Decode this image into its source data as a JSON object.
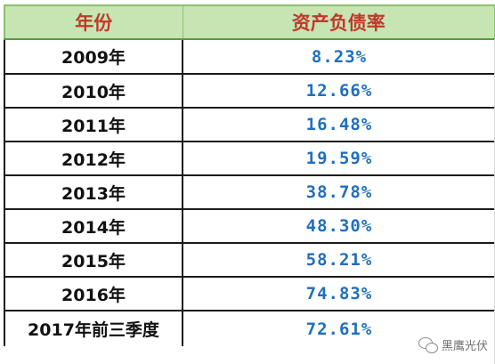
{
  "table": {
    "headers": [
      "年份",
      "资产负债率"
    ],
    "rows": [
      {
        "year": "2009年",
        "rate": "8.23%"
      },
      {
        "year": "2010年",
        "rate": "12.66%"
      },
      {
        "year": "2011年",
        "rate": "16.48%"
      },
      {
        "year": "2012年",
        "rate": "19.59%"
      },
      {
        "year": "2013年",
        "rate": "38.78%"
      },
      {
        "year": "2014年",
        "rate": "48.30%"
      },
      {
        "year": "2015年",
        "rate": "58.21%"
      },
      {
        "year": "2016年",
        "rate": "74.83%"
      },
      {
        "year": "2017年前三季度",
        "rate": "72.61%"
      }
    ]
  },
  "colors": {
    "header_bg": "#c6e5b3",
    "header_text": "#c0392b",
    "rate_text": "#1f6fbf"
  },
  "watermark": {
    "icon": "wechat-icon",
    "text": "黑鹰光伏"
  }
}
